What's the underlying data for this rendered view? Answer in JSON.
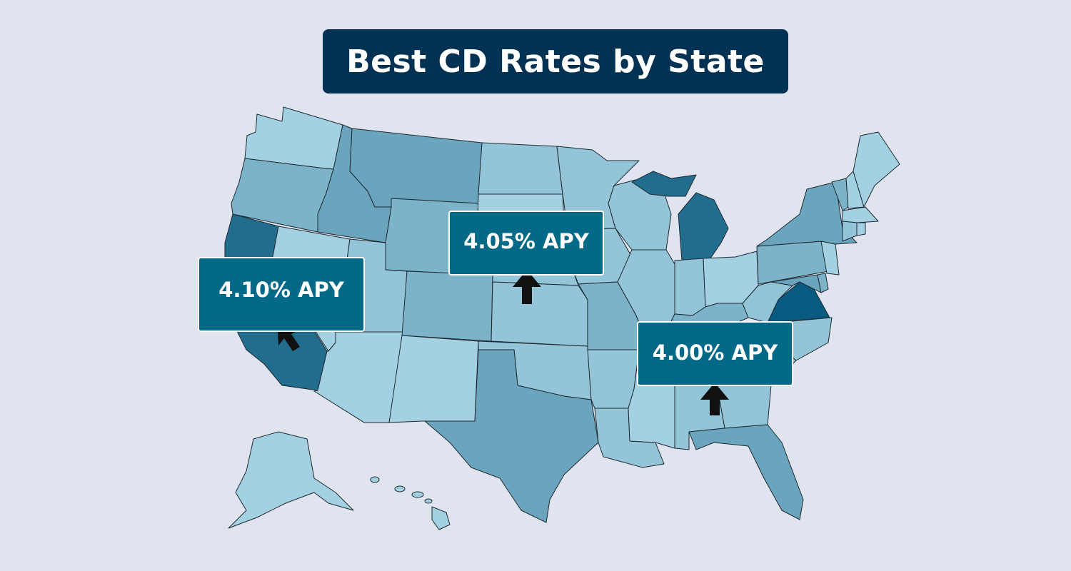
{
  "title": "Best CD Rates by State",
  "colors": {
    "background": "#dfe4ee",
    "title_box": "#013254",
    "callout": "#036987",
    "state_border": "#1d2a33",
    "shades": [
      "#a4d1e2",
      "#93c4d8",
      "#7cb3c9",
      "#6aa4bd",
      "#226c8d",
      "#085a80"
    ]
  },
  "callouts": [
    {
      "id": "ca",
      "label": "4.10% APY",
      "state": "California",
      "icon": "cursor-arrow-icon"
    },
    {
      "id": "ne",
      "label": "4.05% APY",
      "state": "Nebraska",
      "icon": "cursor-arrow-icon"
    },
    {
      "id": "al",
      "label": "4.00% APY",
      "state": "Alabama",
      "icon": "cursor-arrow-icon"
    }
  ],
  "highlighted_states": [
    "California",
    "Oregon",
    "Michigan",
    "Virginia"
  ]
}
